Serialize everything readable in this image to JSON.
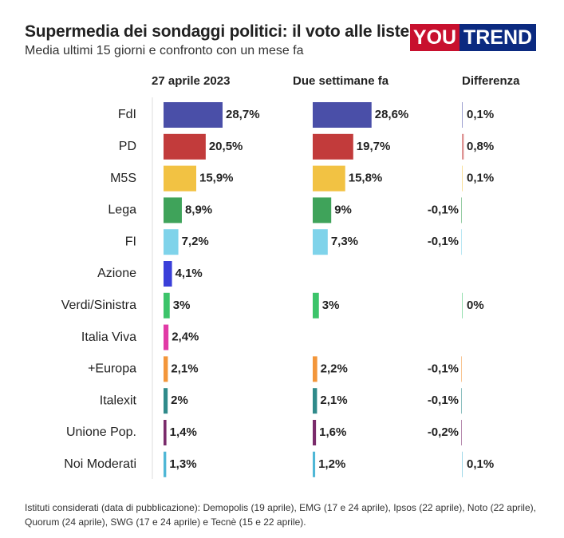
{
  "title": "Supermedia dei sondaggi politici: il voto alle liste",
  "subtitle": "Media ultimi 15 giorni e confronto con un mese fa",
  "logo": {
    "part1": "YOU",
    "part2": "TREND",
    "color1": "#c8102e",
    "color2": "#0b2a80"
  },
  "columns": {
    "current": "27 aprile 2023",
    "previous": "Due settimane fa",
    "difference": "Differenza"
  },
  "footnote": "Istituti considerati (data di pubblicazione): Demopolis (19 aprile), EMG (17 e 24 aprile), Ipsos (22 aprile), Noto (22 aprile), Quorum (24 aprile), SWG (17 e 24 aprile) e Tecnè (15 e 22 aprile).",
  "chart_data": {
    "type": "bar",
    "categories": [
      "FdI",
      "PD",
      "M5S",
      "Lega",
      "FI",
      "Azione",
      "Verdi/Sinistra",
      "Italia Viva",
      "+Europa",
      "Italexit",
      "Unione Pop.",
      "Noi Moderati"
    ],
    "colors": [
      "#4a4fa8",
      "#c23b3b",
      "#f2c243",
      "#3fa35a",
      "#7fd3ea",
      "#3a3fd9",
      "#3cc46a",
      "#e13aa6",
      "#f3963a",
      "#2f8a8a",
      "#7a2b6b",
      "#4fb7d6"
    ],
    "series": [
      {
        "name": "27 aprile 2023",
        "values": [
          28.7,
          20.5,
          15.9,
          8.9,
          7.2,
          4.1,
          3,
          2.4,
          2.1,
          2,
          1.4,
          1.3
        ],
        "labels": [
          "28,7%",
          "20,5%",
          "15,9%",
          "8,9%",
          "7,2%",
          "4,1%",
          "3%",
          "2,4%",
          "2,1%",
          "2%",
          "1,4%",
          "1,3%"
        ]
      },
      {
        "name": "Due settimane fa",
        "values": [
          28.6,
          19.7,
          15.8,
          9,
          7.3,
          null,
          3,
          null,
          2.2,
          2.1,
          1.6,
          1.2
        ],
        "labels": [
          "28,6%",
          "19,7%",
          "15,8%",
          "9%",
          "7,3%",
          "",
          "3%",
          "",
          "2,2%",
          "2,1%",
          "1,6%",
          "1,2%"
        ]
      },
      {
        "name": "Differenza",
        "values": [
          0.1,
          0.8,
          0.1,
          -0.1,
          -0.1,
          null,
          0,
          null,
          -0.1,
          -0.1,
          -0.2,
          0.1
        ],
        "labels": [
          "0,1%",
          "0,8%",
          "0,1%",
          "-0,1%",
          "-0,1%",
          "",
          "0%",
          "",
          "-0,1%",
          "-0,1%",
          "-0,2%",
          "0,1%"
        ]
      }
    ]
  }
}
